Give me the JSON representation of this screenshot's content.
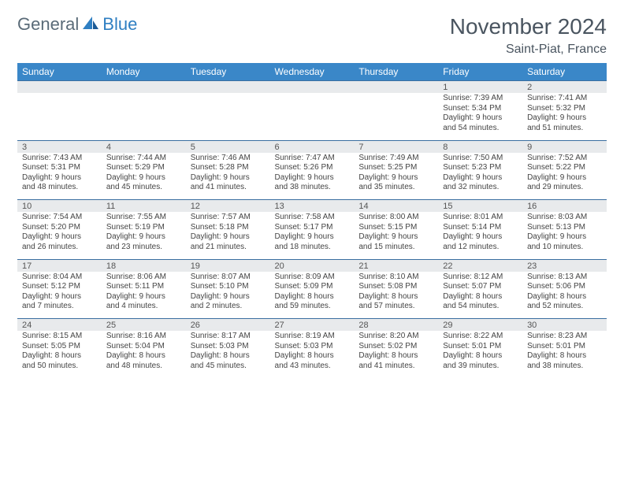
{
  "brand": {
    "part1": "General",
    "part2": "Blue"
  },
  "title": "November 2024",
  "location": "Saint-Piat, France",
  "colors": {
    "header_bg": "#3a87c8",
    "header_text": "#ffffff",
    "daynum_bg": "#e8eaec",
    "border": "#3a6ea0",
    "text": "#444444",
    "title_text": "#4a5560"
  },
  "weekdays": [
    "Sunday",
    "Monday",
    "Tuesday",
    "Wednesday",
    "Thursday",
    "Friday",
    "Saturday"
  ],
  "weeks": [
    [
      null,
      null,
      null,
      null,
      null,
      {
        "n": "1",
        "sr": "Sunrise: 7:39 AM",
        "ss": "Sunset: 5:34 PM",
        "d1": "Daylight: 9 hours",
        "d2": "and 54 minutes."
      },
      {
        "n": "2",
        "sr": "Sunrise: 7:41 AM",
        "ss": "Sunset: 5:32 PM",
        "d1": "Daylight: 9 hours",
        "d2": "and 51 minutes."
      }
    ],
    [
      {
        "n": "3",
        "sr": "Sunrise: 7:43 AM",
        "ss": "Sunset: 5:31 PM",
        "d1": "Daylight: 9 hours",
        "d2": "and 48 minutes."
      },
      {
        "n": "4",
        "sr": "Sunrise: 7:44 AM",
        "ss": "Sunset: 5:29 PM",
        "d1": "Daylight: 9 hours",
        "d2": "and 45 minutes."
      },
      {
        "n": "5",
        "sr": "Sunrise: 7:46 AM",
        "ss": "Sunset: 5:28 PM",
        "d1": "Daylight: 9 hours",
        "d2": "and 41 minutes."
      },
      {
        "n": "6",
        "sr": "Sunrise: 7:47 AM",
        "ss": "Sunset: 5:26 PM",
        "d1": "Daylight: 9 hours",
        "d2": "and 38 minutes."
      },
      {
        "n": "7",
        "sr": "Sunrise: 7:49 AM",
        "ss": "Sunset: 5:25 PM",
        "d1": "Daylight: 9 hours",
        "d2": "and 35 minutes."
      },
      {
        "n": "8",
        "sr": "Sunrise: 7:50 AM",
        "ss": "Sunset: 5:23 PM",
        "d1": "Daylight: 9 hours",
        "d2": "and 32 minutes."
      },
      {
        "n": "9",
        "sr": "Sunrise: 7:52 AM",
        "ss": "Sunset: 5:22 PM",
        "d1": "Daylight: 9 hours",
        "d2": "and 29 minutes."
      }
    ],
    [
      {
        "n": "10",
        "sr": "Sunrise: 7:54 AM",
        "ss": "Sunset: 5:20 PM",
        "d1": "Daylight: 9 hours",
        "d2": "and 26 minutes."
      },
      {
        "n": "11",
        "sr": "Sunrise: 7:55 AM",
        "ss": "Sunset: 5:19 PM",
        "d1": "Daylight: 9 hours",
        "d2": "and 23 minutes."
      },
      {
        "n": "12",
        "sr": "Sunrise: 7:57 AM",
        "ss": "Sunset: 5:18 PM",
        "d1": "Daylight: 9 hours",
        "d2": "and 21 minutes."
      },
      {
        "n": "13",
        "sr": "Sunrise: 7:58 AM",
        "ss": "Sunset: 5:17 PM",
        "d1": "Daylight: 9 hours",
        "d2": "and 18 minutes."
      },
      {
        "n": "14",
        "sr": "Sunrise: 8:00 AM",
        "ss": "Sunset: 5:15 PM",
        "d1": "Daylight: 9 hours",
        "d2": "and 15 minutes."
      },
      {
        "n": "15",
        "sr": "Sunrise: 8:01 AM",
        "ss": "Sunset: 5:14 PM",
        "d1": "Daylight: 9 hours",
        "d2": "and 12 minutes."
      },
      {
        "n": "16",
        "sr": "Sunrise: 8:03 AM",
        "ss": "Sunset: 5:13 PM",
        "d1": "Daylight: 9 hours",
        "d2": "and 10 minutes."
      }
    ],
    [
      {
        "n": "17",
        "sr": "Sunrise: 8:04 AM",
        "ss": "Sunset: 5:12 PM",
        "d1": "Daylight: 9 hours",
        "d2": "and 7 minutes."
      },
      {
        "n": "18",
        "sr": "Sunrise: 8:06 AM",
        "ss": "Sunset: 5:11 PM",
        "d1": "Daylight: 9 hours",
        "d2": "and 4 minutes."
      },
      {
        "n": "19",
        "sr": "Sunrise: 8:07 AM",
        "ss": "Sunset: 5:10 PM",
        "d1": "Daylight: 9 hours",
        "d2": "and 2 minutes."
      },
      {
        "n": "20",
        "sr": "Sunrise: 8:09 AM",
        "ss": "Sunset: 5:09 PM",
        "d1": "Daylight: 8 hours",
        "d2": "and 59 minutes."
      },
      {
        "n": "21",
        "sr": "Sunrise: 8:10 AM",
        "ss": "Sunset: 5:08 PM",
        "d1": "Daylight: 8 hours",
        "d2": "and 57 minutes."
      },
      {
        "n": "22",
        "sr": "Sunrise: 8:12 AM",
        "ss": "Sunset: 5:07 PM",
        "d1": "Daylight: 8 hours",
        "d2": "and 54 minutes."
      },
      {
        "n": "23",
        "sr": "Sunrise: 8:13 AM",
        "ss": "Sunset: 5:06 PM",
        "d1": "Daylight: 8 hours",
        "d2": "and 52 minutes."
      }
    ],
    [
      {
        "n": "24",
        "sr": "Sunrise: 8:15 AM",
        "ss": "Sunset: 5:05 PM",
        "d1": "Daylight: 8 hours",
        "d2": "and 50 minutes."
      },
      {
        "n": "25",
        "sr": "Sunrise: 8:16 AM",
        "ss": "Sunset: 5:04 PM",
        "d1": "Daylight: 8 hours",
        "d2": "and 48 minutes."
      },
      {
        "n": "26",
        "sr": "Sunrise: 8:17 AM",
        "ss": "Sunset: 5:03 PM",
        "d1": "Daylight: 8 hours",
        "d2": "and 45 minutes."
      },
      {
        "n": "27",
        "sr": "Sunrise: 8:19 AM",
        "ss": "Sunset: 5:03 PM",
        "d1": "Daylight: 8 hours",
        "d2": "and 43 minutes."
      },
      {
        "n": "28",
        "sr": "Sunrise: 8:20 AM",
        "ss": "Sunset: 5:02 PM",
        "d1": "Daylight: 8 hours",
        "d2": "and 41 minutes."
      },
      {
        "n": "29",
        "sr": "Sunrise: 8:22 AM",
        "ss": "Sunset: 5:01 PM",
        "d1": "Daylight: 8 hours",
        "d2": "and 39 minutes."
      },
      {
        "n": "30",
        "sr": "Sunrise: 8:23 AM",
        "ss": "Sunset: 5:01 PM",
        "d1": "Daylight: 8 hours",
        "d2": "and 38 minutes."
      }
    ]
  ]
}
